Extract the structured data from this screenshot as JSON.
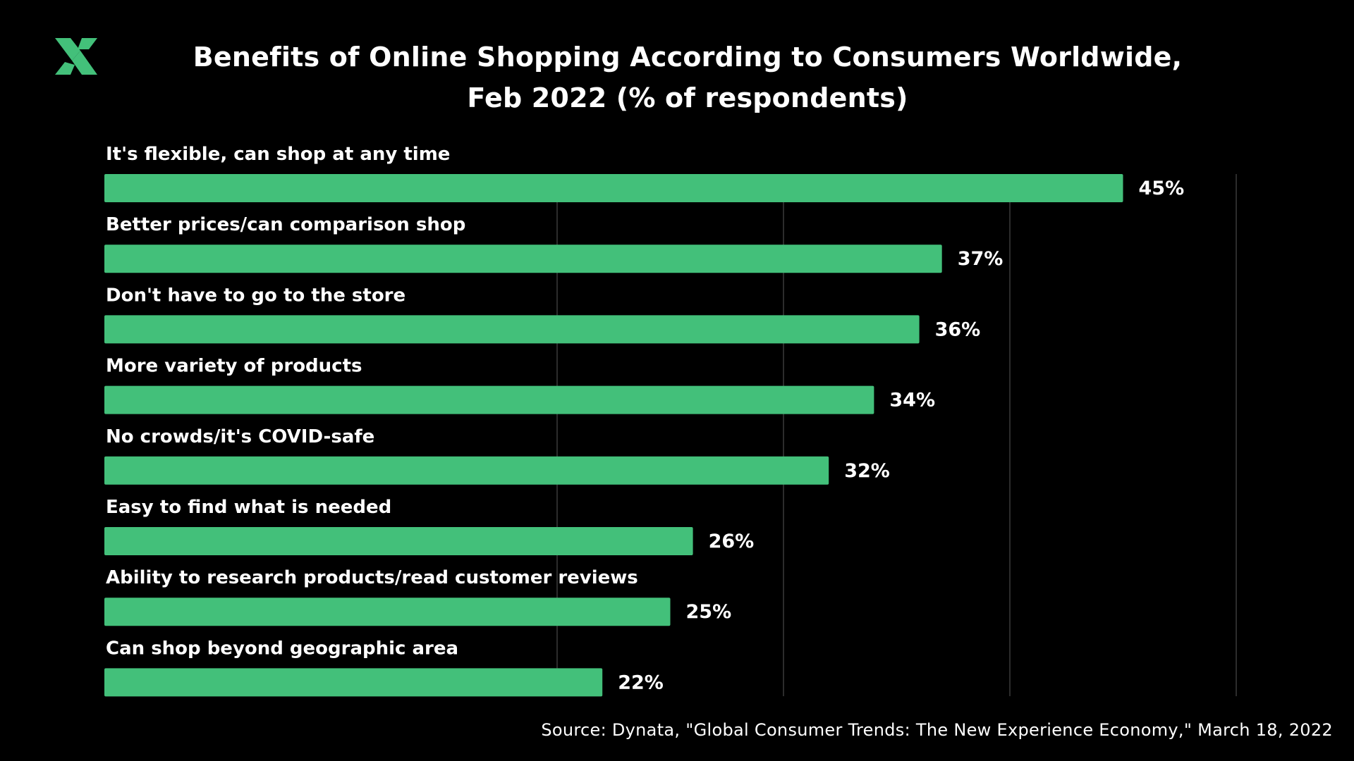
{
  "chart_data": {
    "type": "bar",
    "orientation": "horizontal",
    "title_lines": [
      "Benefits of Online Shopping According to Consumers Worldwide,",
      "Feb 2022 (% of respondents)"
    ],
    "categories": [
      "It's flexible, can shop at any time",
      "Better prices/can comparison shop",
      "Don't have to go to the store",
      "More variety of products",
      "No crowds/it's COVID-safe",
      "Easy to find what is needed",
      "Ability to research products/read customer reviews",
      "Can shop beyond geographic area"
    ],
    "values": [
      45,
      37,
      36,
      34,
      32,
      26,
      25,
      22
    ],
    "value_labels": [
      "45%",
      "37%",
      "36%",
      "34%",
      "32%",
      "26%",
      "25%",
      "22%"
    ],
    "unit": "%",
    "xlim": [
      0,
      50
    ],
    "gridlines_at": [
      20,
      30,
      40,
      50
    ],
    "grid": true,
    "source": "Source: Dynata, \"Global Consumer Trends: The New Experience Economy,\" March 18, 2022"
  },
  "colors": {
    "background": "#000000",
    "bar": "#43c07a",
    "text": "#ffffff",
    "grid": "#3a3a3a",
    "logo": "#43c07a"
  },
  "logo": {
    "icon": "brand-x-logo-icon"
  }
}
